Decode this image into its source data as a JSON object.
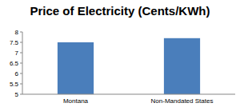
{
  "chart_data": {
    "type": "bar",
    "title": "Price of Electricity (Cents/KWh)",
    "categories": [
      "Montana",
      "Non-Mandated States"
    ],
    "values": [
      7.5,
      7.7
    ],
    "color": "#4a7ebb",
    "ylim": [
      5,
      8
    ],
    "yticks": [
      5,
      5.5,
      6,
      6.5,
      7,
      7.5,
      8
    ],
    "grid": false
  }
}
